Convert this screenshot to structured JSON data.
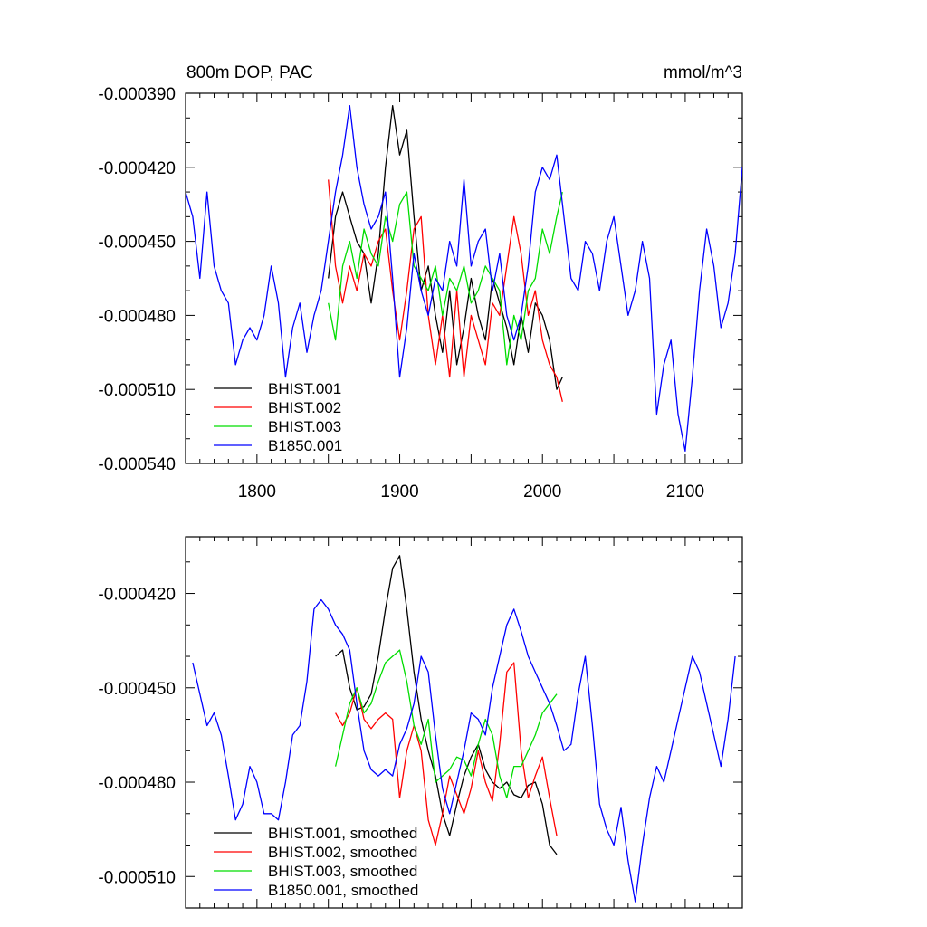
{
  "chart_data": [
    {
      "type": "line",
      "title_left": "800m DOP, PAC",
      "title_right": "mmol/m^3",
      "xlim": [
        1750,
        2140
      ],
      "ylim": [
        -0.00054,
        -0.00039
      ],
      "x_ticks": [
        1800,
        1900,
        2000,
        2100
      ],
      "x_tick_labels": [
        "1800",
        "1900",
        "2000",
        "2100"
      ],
      "y_ticks": [
        -0.00039,
        -0.00042,
        -0.00045,
        -0.00048,
        -0.00051,
        -0.00054
      ],
      "y_tick_labels": [
        "-0.000390",
        "-0.000420",
        "-0.000450",
        "-0.000480",
        "-0.000510",
        "-0.000540"
      ],
      "legend": [
        "BHIST.001",
        "BHIST.002",
        "BHIST.003",
        "B1850.001"
      ],
      "legend_position": "bottom-left",
      "series": [
        {
          "name": "BHIST.001",
          "color": "#000000",
          "x": [
            1850,
            1855,
            1860,
            1865,
            1870,
            1875,
            1880,
            1885,
            1890,
            1895,
            1900,
            1905,
            1910,
            1915,
            1920,
            1925,
            1930,
            1935,
            1940,
            1945,
            1950,
            1955,
            1960,
            1965,
            1970,
            1975,
            1980,
            1985,
            1990,
            1995,
            2000,
            2005,
            2010,
            2014
          ],
          "y": [
            -0.000465,
            -0.00044,
            -0.00043,
            -0.00044,
            -0.00045,
            -0.000455,
            -0.000475,
            -0.000455,
            -0.00042,
            -0.000395,
            -0.000415,
            -0.000405,
            -0.00044,
            -0.00047,
            -0.00046,
            -0.00048,
            -0.000495,
            -0.00047,
            -0.0005,
            -0.000485,
            -0.000465,
            -0.00048,
            -0.00049,
            -0.000465,
            -0.000475,
            -0.000485,
            -0.0005,
            -0.00048,
            -0.000495,
            -0.000475,
            -0.00048,
            -0.00049,
            -0.00051,
            -0.000505
          ]
        },
        {
          "name": "BHIST.002",
          "color": "#ff0000",
          "x": [
            1850,
            1855,
            1860,
            1865,
            1870,
            1875,
            1880,
            1885,
            1890,
            1895,
            1900,
            1905,
            1910,
            1915,
            1920,
            1925,
            1930,
            1935,
            1940,
            1945,
            1950,
            1955,
            1960,
            1965,
            1970,
            1975,
            1980,
            1985,
            1990,
            1995,
            2000,
            2005,
            2010,
            2014
          ],
          "y": [
            -0.000425,
            -0.00046,
            -0.000475,
            -0.00046,
            -0.00047,
            -0.000455,
            -0.00046,
            -0.00045,
            -0.000445,
            -0.00047,
            -0.00049,
            -0.00047,
            -0.000445,
            -0.00044,
            -0.00048,
            -0.0005,
            -0.00048,
            -0.000505,
            -0.00047,
            -0.000505,
            -0.00048,
            -0.00049,
            -0.0005,
            -0.000475,
            -0.00048,
            -0.00046,
            -0.00044,
            -0.000455,
            -0.00048,
            -0.00047,
            -0.00049,
            -0.0005,
            -0.000505,
            -0.000515
          ]
        },
        {
          "name": "BHIST.003",
          "color": "#00dd00",
          "x": [
            1850,
            1855,
            1860,
            1865,
            1870,
            1875,
            1880,
            1885,
            1890,
            1895,
            1900,
            1905,
            1910,
            1915,
            1920,
            1925,
            1930,
            1935,
            1940,
            1945,
            1950,
            1955,
            1960,
            1965,
            1970,
            1975,
            1980,
            1985,
            1990,
            1995,
            2000,
            2005,
            2010,
            2014
          ],
          "y": [
            -0.000475,
            -0.00049,
            -0.00046,
            -0.00045,
            -0.000465,
            -0.000445,
            -0.000455,
            -0.00046,
            -0.00044,
            -0.00045,
            -0.000435,
            -0.00043,
            -0.00046,
            -0.000465,
            -0.00047,
            -0.00046,
            -0.00048,
            -0.000465,
            -0.00047,
            -0.00046,
            -0.000475,
            -0.00047,
            -0.00046,
            -0.000465,
            -0.00047,
            -0.0005,
            -0.00048,
            -0.00049,
            -0.00047,
            -0.000465,
            -0.000445,
            -0.000455,
            -0.00044,
            -0.00043
          ]
        },
        {
          "name": "B1850.001",
          "color": "#0000ff",
          "x": [
            1750,
            1755,
            1760,
            1765,
            1770,
            1775,
            1780,
            1785,
            1790,
            1795,
            1800,
            1805,
            1810,
            1815,
            1820,
            1825,
            1830,
            1835,
            1840,
            1845,
            1850,
            1855,
            1860,
            1865,
            1870,
            1875,
            1880,
            1885,
            1890,
            1895,
            1900,
            1905,
            1910,
            1915,
            1920,
            1925,
            1930,
            1935,
            1940,
            1945,
            1950,
            1955,
            1960,
            1965,
            1970,
            1975,
            1980,
            1985,
            1990,
            1995,
            2000,
            2005,
            2010,
            2015,
            2020,
            2025,
            2030,
            2035,
            2040,
            2045,
            2050,
            2055,
            2060,
            2065,
            2070,
            2075,
            2080,
            2085,
            2090,
            2095,
            2100,
            2105,
            2110,
            2115,
            2120,
            2125,
            2130,
            2135,
            2140
          ],
          "y": [
            -0.00043,
            -0.00044,
            -0.000465,
            -0.00043,
            -0.00046,
            -0.00047,
            -0.000475,
            -0.0005,
            -0.00049,
            -0.000485,
            -0.00049,
            -0.00048,
            -0.00046,
            -0.000475,
            -0.000505,
            -0.000485,
            -0.000475,
            -0.000495,
            -0.00048,
            -0.00047,
            -0.00045,
            -0.00043,
            -0.000415,
            -0.000395,
            -0.00042,
            -0.000435,
            -0.000445,
            -0.00044,
            -0.00043,
            -0.000465,
            -0.000505,
            -0.000485,
            -0.000455,
            -0.00047,
            -0.00048,
            -0.000465,
            -0.00047,
            -0.00045,
            -0.00046,
            -0.000425,
            -0.00046,
            -0.00045,
            -0.000445,
            -0.00047,
            -0.000455,
            -0.00048,
            -0.00049,
            -0.00048,
            -0.00046,
            -0.00043,
            -0.00042,
            -0.000425,
            -0.000415,
            -0.00044,
            -0.000465,
            -0.00047,
            -0.00045,
            -0.000455,
            -0.00047,
            -0.00045,
            -0.00044,
            -0.00046,
            -0.00048,
            -0.00047,
            -0.00045,
            -0.000465,
            -0.00052,
            -0.0005,
            -0.00049,
            -0.00052,
            -0.000535,
            -0.000505,
            -0.00047,
            -0.000445,
            -0.00046,
            -0.000485,
            -0.000475,
            -0.000455,
            -0.00042
          ]
        }
      ]
    },
    {
      "type": "line",
      "xlim": [
        1750,
        2140
      ],
      "ylim": [
        -0.00052,
        -0.000402
      ],
      "x_ticks": [
        1800,
        1900,
        2000,
        2100
      ],
      "y_ticks": [
        -0.00042,
        -0.00045,
        -0.00048,
        -0.00051
      ],
      "y_tick_labels": [
        "-0.000420",
        "-0.000450",
        "-0.000480",
        "-0.000510"
      ],
      "legend": [
        "BHIST.001, smoothed",
        "BHIST.002, smoothed",
        "BHIST.003, smoothed",
        "B1850.001, smoothed"
      ],
      "legend_position": "bottom-left",
      "series": [
        {
          "name": "BHIST.001, smoothed",
          "color": "#000000",
          "x": [
            1855,
            1860,
            1865,
            1870,
            1875,
            1880,
            1885,
            1890,
            1895,
            1900,
            1905,
            1910,
            1915,
            1920,
            1925,
            1930,
            1935,
            1940,
            1945,
            1950,
            1955,
            1960,
            1965,
            1970,
            1975,
            1980,
            1985,
            1990,
            1995,
            2000,
            2005,
            2010
          ],
          "y": [
            -0.00044,
            -0.000438,
            -0.00045,
            -0.000457,
            -0.000456,
            -0.000452,
            -0.00044,
            -0.000425,
            -0.000412,
            -0.000408,
            -0.000425,
            -0.000445,
            -0.00046,
            -0.00047,
            -0.000478,
            -0.00049,
            -0.000497,
            -0.000487,
            -0.000478,
            -0.000472,
            -0.000468,
            -0.000476,
            -0.00048,
            -0.000482,
            -0.00048,
            -0.000484,
            -0.000485,
            -0.000481,
            -0.00048,
            -0.000487,
            -0.0005,
            -0.000503
          ]
        },
        {
          "name": "BHIST.002, smoothed",
          "color": "#ff0000",
          "x": [
            1855,
            1860,
            1865,
            1870,
            1875,
            1880,
            1885,
            1890,
            1895,
            1900,
            1905,
            1910,
            1915,
            1920,
            1925,
            1930,
            1935,
            1940,
            1945,
            1950,
            1955,
            1960,
            1965,
            1970,
            1975,
            1980,
            1985,
            1990,
            1995,
            2000,
            2005,
            2010
          ],
          "y": [
            -0.000458,
            -0.000462,
            -0.000458,
            -0.00045,
            -0.00046,
            -0.000463,
            -0.00046,
            -0.000458,
            -0.00046,
            -0.000485,
            -0.00047,
            -0.000462,
            -0.00047,
            -0.000492,
            -0.0005,
            -0.00049,
            -0.000478,
            -0.000484,
            -0.00049,
            -0.000482,
            -0.00047,
            -0.00048,
            -0.000486,
            -0.000468,
            -0.000445,
            -0.000442,
            -0.00047,
            -0.000485,
            -0.000478,
            -0.000472,
            -0.000485,
            -0.000497
          ]
        },
        {
          "name": "BHIST.003, smoothed",
          "color": "#00dd00",
          "x": [
            1855,
            1860,
            1865,
            1870,
            1875,
            1880,
            1885,
            1890,
            1895,
            1900,
            1905,
            1910,
            1915,
            1920,
            1925,
            1930,
            1935,
            1940,
            1945,
            1950,
            1955,
            1960,
            1965,
            1970,
            1975,
            1980,
            1985,
            1990,
            1995,
            2000,
            2005,
            2010
          ],
          "y": [
            -0.000475,
            -0.000465,
            -0.000455,
            -0.00045,
            -0.000458,
            -0.000455,
            -0.000448,
            -0.000442,
            -0.00044,
            -0.000438,
            -0.000448,
            -0.000462,
            -0.000468,
            -0.00046,
            -0.00048,
            -0.000478,
            -0.000476,
            -0.000472,
            -0.000473,
            -0.000478,
            -0.000468,
            -0.00046,
            -0.000465,
            -0.000478,
            -0.000485,
            -0.000475,
            -0.000475,
            -0.00047,
            -0.000465,
            -0.000458,
            -0.000455,
            -0.000452
          ]
        },
        {
          "name": "B1850.001, smoothed",
          "color": "#0000ff",
          "x": [
            1755,
            1760,
            1765,
            1770,
            1775,
            1780,
            1785,
            1790,
            1795,
            1800,
            1805,
            1810,
            1815,
            1820,
            1825,
            1830,
            1835,
            1840,
            1845,
            1850,
            1855,
            1860,
            1865,
            1870,
            1875,
            1880,
            1885,
            1890,
            1895,
            1900,
            1905,
            1910,
            1915,
            1920,
            1925,
            1930,
            1935,
            1940,
            1945,
            1950,
            1955,
            1960,
            1965,
            1970,
            1975,
            1980,
            1985,
            1990,
            1995,
            2000,
            2005,
            2010,
            2015,
            2020,
            2025,
            2030,
            2035,
            2040,
            2045,
            2050,
            2055,
            2060,
            2065,
            2070,
            2075,
            2080,
            2085,
            2090,
            2095,
            2100,
            2105,
            2110,
            2115,
            2120,
            2125,
            2130,
            2135
          ],
          "y": [
            -0.000442,
            -0.000452,
            -0.000462,
            -0.000458,
            -0.000465,
            -0.000478,
            -0.000492,
            -0.000487,
            -0.000475,
            -0.00048,
            -0.00049,
            -0.00049,
            -0.000492,
            -0.00048,
            -0.000465,
            -0.000462,
            -0.000448,
            -0.000425,
            -0.000422,
            -0.000425,
            -0.00043,
            -0.000433,
            -0.000438,
            -0.000455,
            -0.00047,
            -0.000476,
            -0.000478,
            -0.000476,
            -0.000478,
            -0.000468,
            -0.000463,
            -0.000455,
            -0.00044,
            -0.000445,
            -0.000465,
            -0.000482,
            -0.00049,
            -0.00048,
            -0.00047,
            -0.000458,
            -0.00046,
            -0.000465,
            -0.00045,
            -0.00044,
            -0.00043,
            -0.000425,
            -0.000432,
            -0.00044,
            -0.000445,
            -0.00045,
            -0.000455,
            -0.000462,
            -0.00047,
            -0.000468,
            -0.000452,
            -0.00044,
            -0.000462,
            -0.000487,
            -0.000495,
            -0.0005,
            -0.000488,
            -0.000505,
            -0.000518,
            -0.0005,
            -0.000485,
            -0.000475,
            -0.00048,
            -0.00047,
            -0.00046,
            -0.00045,
            -0.00044,
            -0.000445,
            -0.000455,
            -0.000465,
            -0.000475,
            -0.00046,
            -0.00044
          ]
        }
      ]
    }
  ]
}
